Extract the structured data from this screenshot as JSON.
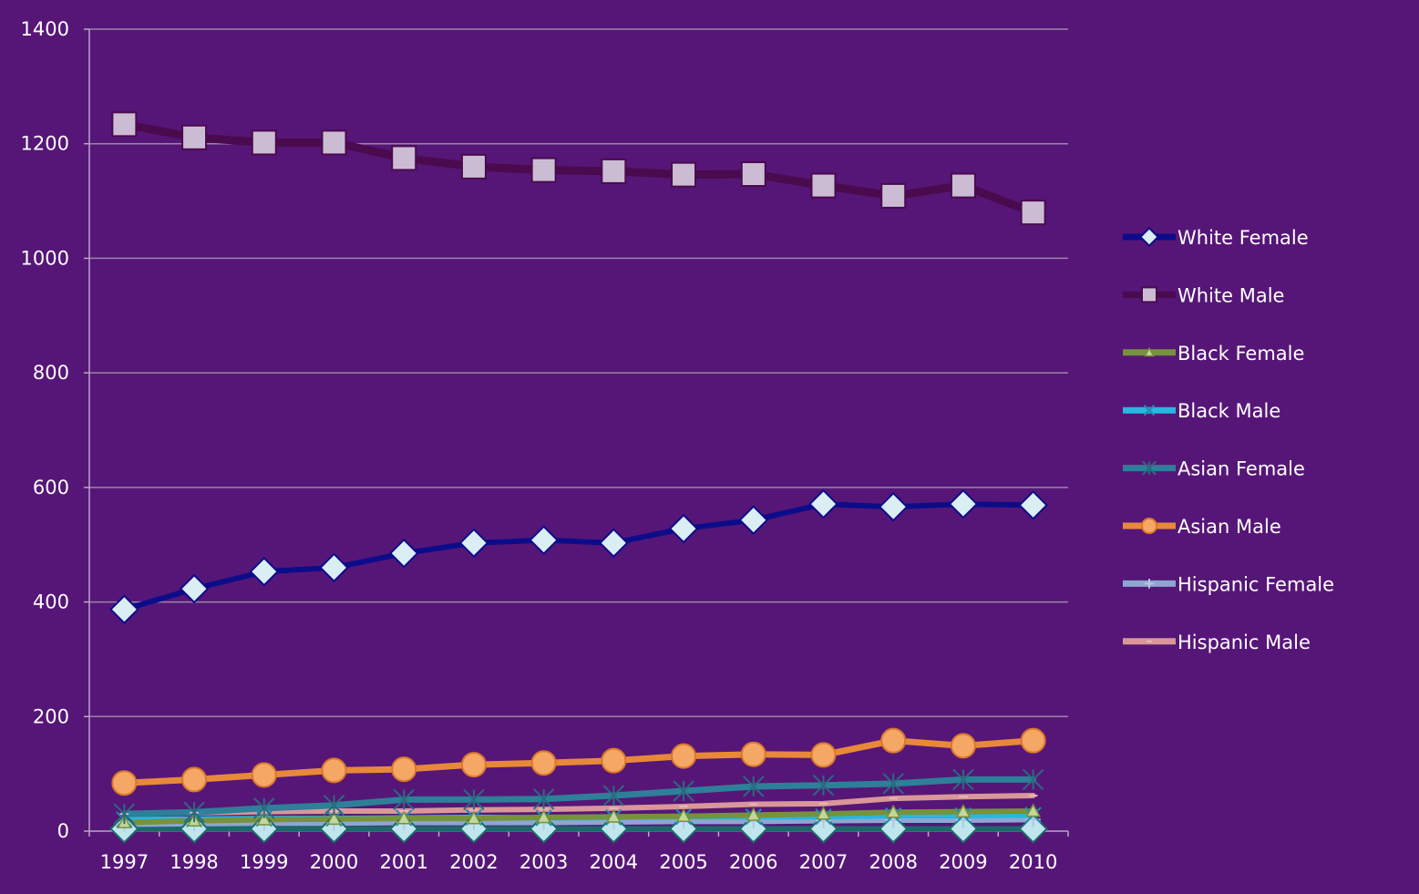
{
  "colors": {
    "background": "#561677",
    "gridline": "#9a85a8",
    "axis": "#b9a6c6",
    "text": "#ffffff"
  },
  "chart_data": {
    "type": "line",
    "title": "",
    "xlabel": "",
    "ylabel": "",
    "x": [
      "1997",
      "1998",
      "1999",
      "2000",
      "2001",
      "2002",
      "2003",
      "2004",
      "2005",
      "2006",
      "2007",
      "2008",
      "2009",
      "2010"
    ],
    "ylim": [
      0,
      1400
    ],
    "yticks": [
      "0",
      "200",
      "400",
      "600",
      "800",
      "1000",
      "1200",
      "1400"
    ],
    "ytick_values": [
      0,
      200,
      400,
      600,
      800,
      1000,
      1200,
      1400
    ],
    "grid": true,
    "legend_position": "right",
    "series": [
      {
        "name": "White Female",
        "color": "#0c0c8a",
        "marker": "diamond",
        "marker_fill": "#dbeef4",
        "marker_stroke": "#0c0c8a",
        "line_width": 6,
        "values": [
          387,
          423,
          453,
          460,
          485,
          503,
          508,
          503,
          528,
          543,
          571,
          566,
          571,
          569
        ]
      },
      {
        "name": "White Male",
        "color": "#4a0a4e",
        "marker": "square",
        "marker_fill": "#cbbcd4",
        "marker_stroke": "#4a0a4e",
        "line_width": 9,
        "values": [
          1234,
          1211,
          1202,
          1202,
          1175,
          1160,
          1154,
          1152,
          1146,
          1147,
          1127,
          1109,
          1127,
          1080
        ]
      },
      {
        "name": "Black Female",
        "color": "#77923c",
        "marker": "triangle",
        "marker_fill": "#c3d69b",
        "marker_stroke": "#77923c",
        "line_width": 6,
        "values": [
          15,
          18,
          20,
          21,
          22,
          22,
          24,
          25,
          26,
          28,
          30,
          33,
          34,
          35
        ]
      },
      {
        "name": "Black Male",
        "color": "#27b7e0",
        "marker": "x",
        "marker_fill": "#27b7e0",
        "marker_stroke": "#1d8fb0",
        "line_width": 6,
        "values": [
          20,
          21,
          22,
          22,
          23,
          24,
          23,
          24,
          25,
          25,
          25,
          27,
          27,
          28
        ]
      },
      {
        "name": "Asian Female",
        "color": "#2e7f98",
        "marker": "star",
        "marker_fill": "#2e7f98",
        "marker_stroke": "#2a6b80",
        "line_width": 7,
        "values": [
          30,
          33,
          40,
          45,
          55,
          55,
          56,
          62,
          70,
          78,
          80,
          83,
          90,
          90
        ]
      },
      {
        "name": "Asian Male",
        "color": "#e8893a",
        "marker": "circle",
        "marker_fill": "#f5a766",
        "marker_stroke": "#d9782a",
        "line_width": 7,
        "values": [
          84,
          90,
          98,
          106,
          108,
          116,
          119,
          123,
          131,
          134,
          133,
          158,
          149,
          158
        ]
      },
      {
        "name": "Hispanic Female",
        "color": "#8ea6d0",
        "marker": "plus",
        "marker_fill": "#8ea6d0",
        "marker_stroke": "#b7c6e2",
        "line_width": 6,
        "values": [
          12,
          13,
          14,
          14,
          15,
          15,
          15,
          16,
          17,
          17,
          18,
          19,
          19,
          20
        ]
      },
      {
        "name": "Hispanic Male",
        "color": "#d9979a",
        "marker": "dash",
        "marker_fill": "#d9979a",
        "marker_stroke": "#e9b8ba",
        "line_width": 6,
        "values": [
          30,
          32,
          34,
          35,
          35,
          37,
          38,
          40,
          43,
          47,
          48,
          57,
          60,
          62
        ]
      },
      {
        "name": "",
        "color": "#1a6a6a",
        "marker": "diamond",
        "marker_fill": "#bfe6ec",
        "marker_stroke": "#1a6a6a",
        "line_width": 6,
        "values": [
          4,
          4,
          4,
          4,
          4,
          4,
          4,
          4,
          4,
          4,
          4,
          4,
          4,
          4
        ]
      }
    ]
  }
}
